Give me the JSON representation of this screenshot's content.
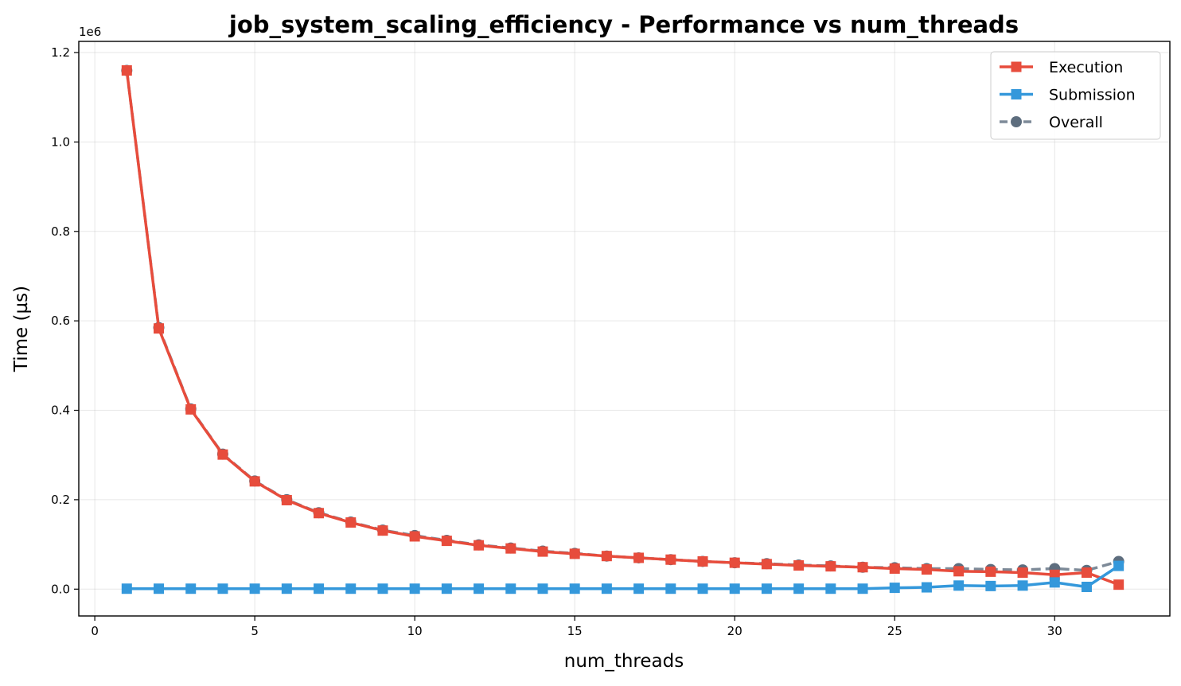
{
  "chart_data": {
    "type": "line",
    "title": "job_system_scaling_efficiency - Performance vs num_threads",
    "xlabel": "num_threads",
    "ylabel": "Time (µs)",
    "y_offset_label": "1e6",
    "xlim": [
      -0.5,
      33.6
    ],
    "ylim": [
      -60000,
      1225000
    ],
    "x_ticks": [
      0,
      5,
      10,
      15,
      20,
      25,
      30
    ],
    "x_tick_labels": [
      "0",
      "5",
      "10",
      "15",
      "20",
      "25",
      "30"
    ],
    "y_ticks": [
      0,
      200000,
      400000,
      600000,
      800000,
      1000000,
      1200000
    ],
    "y_tick_labels": [
      "0.0",
      "0.2",
      "0.4",
      "0.6",
      "0.8",
      "1.0",
      "1.2"
    ],
    "grid": true,
    "legend_position": "top-right",
    "x": [
      1,
      2,
      3,
      4,
      5,
      6,
      7,
      8,
      9,
      10,
      11,
      12,
      13,
      14,
      15,
      16,
      17,
      18,
      19,
      20,
      21,
      22,
      23,
      24,
      25,
      26,
      27,
      28,
      29,
      30,
      31,
      32
    ],
    "series": [
      {
        "name": "Overall",
        "color": "#5d6d7e",
        "style": "dashed",
        "marker": "circle",
        "values": [
          1160000,
          585000,
          403000,
          302000,
          242000,
          200000,
          171000,
          150000,
          132000,
          120000,
          109000,
          99000,
          92000,
          85000,
          80000,
          74000,
          70000,
          66000,
          62000,
          59000,
          57000,
          54000,
          52000,
          49000,
          48000,
          46000,
          46000,
          44000,
          43000,
          46000,
          42000,
          62000
        ]
      },
      {
        "name": "Execution",
        "color": "#e74c3c",
        "style": "solid",
        "marker": "square",
        "values": [
          1160000,
          583000,
          402000,
          301000,
          241000,
          199000,
          170000,
          149000,
          131000,
          118000,
          108000,
          98000,
          91000,
          84000,
          79000,
          74000,
          70000,
          66000,
          62000,
          59000,
          56000,
          53000,
          51000,
          49000,
          46000,
          44000,
          40000,
          39000,
          37000,
          32000,
          37000,
          10000
        ]
      },
      {
        "name": "Submission",
        "color": "#3498db",
        "style": "solid",
        "marker": "square",
        "values": [
          1000,
          1000,
          1000,
          1000,
          1000,
          1000,
          1000,
          1000,
          1000,
          1000,
          1000,
          1000,
          1000,
          1000,
          1000,
          1000,
          1000,
          1000,
          1000,
          1000,
          1000,
          1000,
          1000,
          1000,
          3000,
          4000,
          8000,
          7000,
          8000,
          15000,
          5000,
          52000
        ]
      }
    ],
    "legend_order": [
      "Execution",
      "Submission",
      "Overall"
    ]
  }
}
